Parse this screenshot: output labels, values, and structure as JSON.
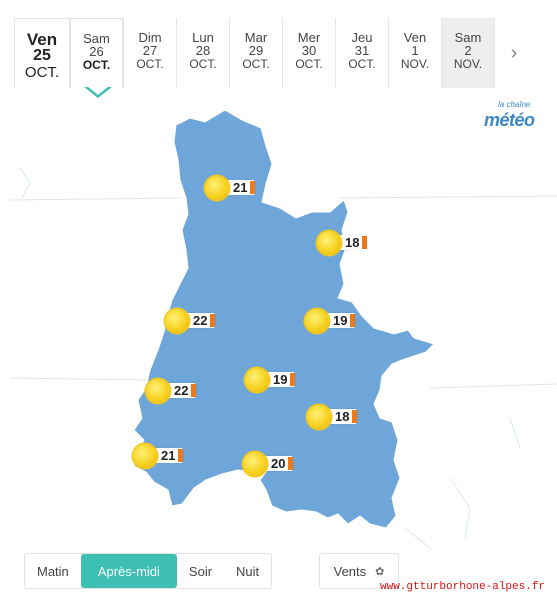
{
  "dates": [
    {
      "name": "Ven",
      "day": "25",
      "month": "OCT.",
      "state": "today"
    },
    {
      "name": "Sam",
      "day": "26",
      "month": "OCT.",
      "state": "selected"
    },
    {
      "name": "Dim",
      "day": "27",
      "month": "OCT.",
      "state": "normal"
    },
    {
      "name": "Lun",
      "day": "28",
      "month": "OCT.",
      "state": "normal"
    },
    {
      "name": "Mar",
      "day": "29",
      "month": "OCT.",
      "state": "normal"
    },
    {
      "name": "Mer",
      "day": "30",
      "month": "OCT.",
      "state": "normal"
    },
    {
      "name": "Jeu",
      "day": "31",
      "month": "OCT.",
      "state": "normal"
    },
    {
      "name": "Ven",
      "day": "1",
      "month": "NOV.",
      "state": "normal"
    },
    {
      "name": "Sam",
      "day": "2",
      "month": "NOV.",
      "state": "last"
    }
  ],
  "next_icon": "chevron-right-icon",
  "brand": {
    "small": "la chaîne",
    "big": "météo"
  },
  "stations": [
    {
      "temp": "21",
      "icon": "sun-icon"
    },
    {
      "temp": "18",
      "icon": "sun-icon"
    },
    {
      "temp": "22",
      "icon": "sun-icon"
    },
    {
      "temp": "19",
      "icon": "sun-icon"
    },
    {
      "temp": "22",
      "icon": "sun-icon"
    },
    {
      "temp": "19",
      "icon": "sun-icon"
    },
    {
      "temp": "18",
      "icon": "sun-icon"
    },
    {
      "temp": "21",
      "icon": "sun-icon"
    },
    {
      "temp": "20",
      "icon": "sun-icon"
    }
  ],
  "periods": [
    {
      "label": "Matin",
      "active": false
    },
    {
      "label": "Après-midi",
      "active": true
    },
    {
      "label": "Soir",
      "active": false
    },
    {
      "label": "Nuit",
      "active": false
    }
  ],
  "winds_label": "Vents",
  "watermark": "www.gtturborhone-alpes.fr",
  "colors": {
    "map_fill": "#6ea6d9",
    "active_tab": "#3dbfb1",
    "temp_bar": "#ec7a1c",
    "sun": "#f6d21f"
  }
}
